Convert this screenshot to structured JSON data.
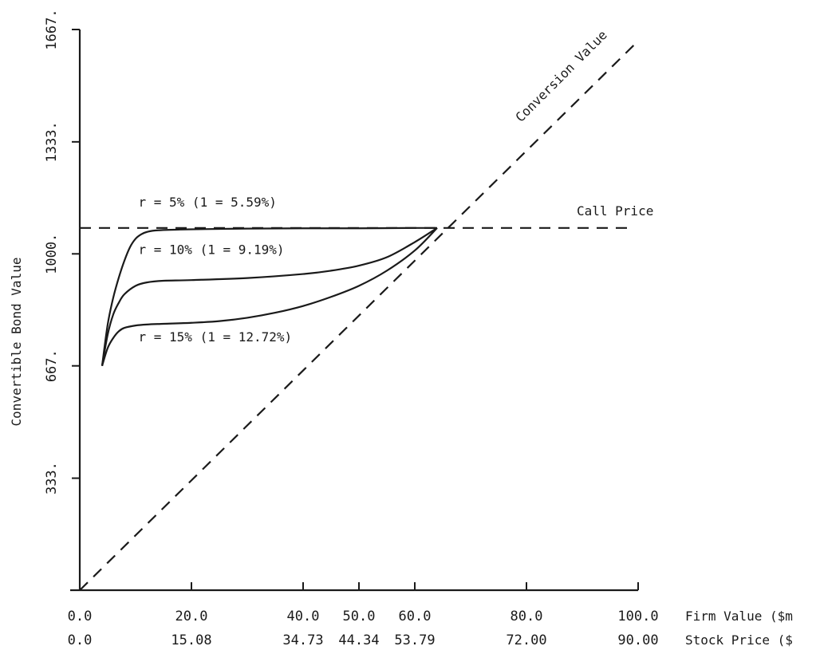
{
  "chart_data": {
    "type": "line",
    "title": "",
    "ylabel": "Convertible Bond Value",
    "xlabel": "Firm Value ($m",
    "x2label": "Stock Price ($",
    "ylim": [
      0,
      1667
    ],
    "xlim": [
      0,
      100
    ],
    "y_ticks": [
      "333.",
      "667.",
      "1000.",
      "1333.",
      "1667."
    ],
    "y_tick_values": [
      333,
      667,
      1000,
      1333,
      1667
    ],
    "x_ticks": [
      {
        "v": 0,
        "label": "0.0",
        "stock": "0.0"
      },
      {
        "v": 20,
        "label": "20.0",
        "stock": "15.08"
      },
      {
        "v": 40,
        "label": "40.0",
        "stock": "34.73"
      },
      {
        "v": 50,
        "label": "50.0",
        "stock": "44.34"
      },
      {
        "v": 60,
        "label": "60.0",
        "stock": "53.79"
      },
      {
        "v": 80,
        "label": "80.0",
        "stock": "72.00"
      },
      {
        "v": 100,
        "label": "100.0",
        "stock": "90.00"
      }
    ],
    "series": [
      {
        "name": "r = 5% (1 = 5.59%)",
        "style": "solid",
        "x": [
          4,
          5,
          6,
          7,
          8,
          9,
          10,
          11,
          12,
          14,
          20,
          30,
          40,
          50,
          60,
          64
        ],
        "y": [
          667,
          790,
          870,
          930,
          980,
          1020,
          1045,
          1058,
          1065,
          1070,
          1073,
          1075,
          1076,
          1076,
          1077,
          1077
        ]
      },
      {
        "name": "r =  10% (1 = 9.19%)",
        "style": "solid",
        "x": [
          4,
          5,
          6,
          7,
          8,
          10,
          12,
          15,
          20,
          30,
          40,
          45,
          50,
          55,
          60,
          64
        ],
        "y": [
          667,
          760,
          820,
          855,
          880,
          905,
          915,
          920,
          922,
          928,
          940,
          950,
          965,
          990,
          1035,
          1077
        ]
      },
      {
        "name": "r = 15% (1 = 12.72%)",
        "style": "solid",
        "x": [
          4,
          5,
          6,
          7,
          8,
          10,
          12,
          15,
          20,
          25,
          30,
          35,
          40,
          45,
          50,
          55,
          60,
          64
        ],
        "y": [
          667,
          720,
          750,
          770,
          780,
          787,
          790,
          792,
          795,
          800,
          810,
          825,
          845,
          872,
          905,
          950,
          1010,
          1077
        ]
      },
      {
        "name": "Call Price",
        "style": "dashed",
        "x": [
          0,
          99
        ],
        "y": [
          1077,
          1077
        ]
      },
      {
        "name": "Conversion Value",
        "style": "dashed",
        "x": [
          0,
          100
        ],
        "y": [
          0,
          1633
        ]
      }
    ],
    "annotations": [
      {
        "text": "r = 5% (1 = 5.59%)",
        "x": 10.5,
        "y": 1140
      },
      {
        "text": "r =  10% (1 = 9.19%)",
        "x": 10.5,
        "y": 1000
      },
      {
        "text": "r = 15% (1 = 12.72%)",
        "x": 10.5,
        "y": 740
      },
      {
        "text": "Call Price",
        "x": 89,
        "y": 1115
      },
      {
        "text": "Conversion Value",
        "x": 79,
        "y": 1390,
        "angle": -45
      }
    ],
    "grid": false,
    "legend": "none"
  }
}
